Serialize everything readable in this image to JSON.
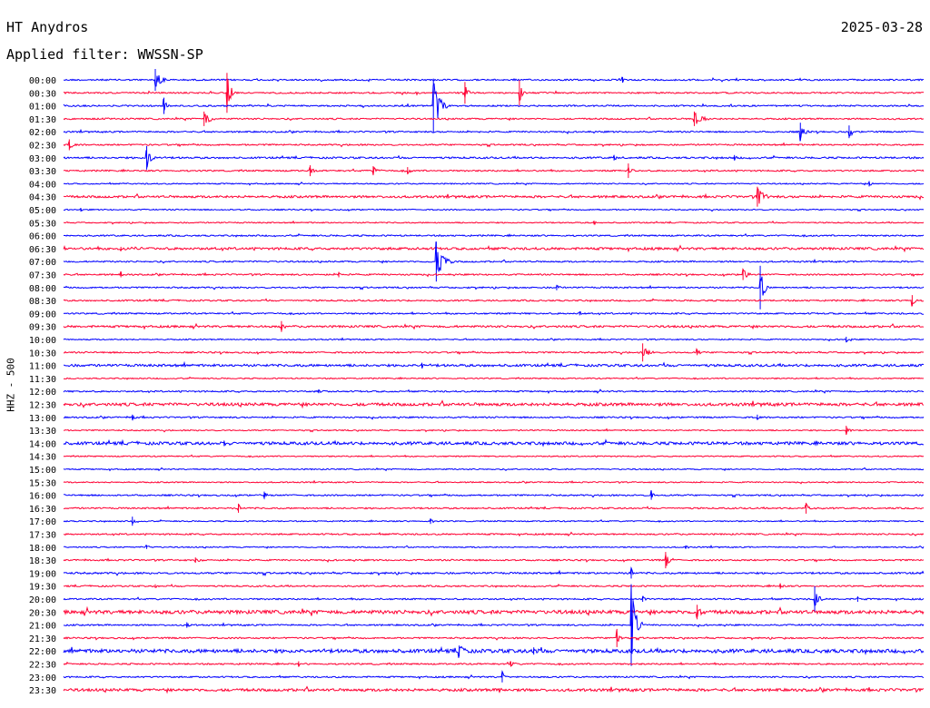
{
  "header": {
    "station": "HT Anydros",
    "date": "2025-03-28",
    "filter": "Applied filter: WWSSN-SP",
    "channel": "HHZ - 500"
  },
  "colors": {
    "trace_a": "#0000ff",
    "trace_b": "#ff0033"
  },
  "chart_data": {
    "type": "line",
    "x_range": [
      0,
      30
    ],
    "x_unit": "minutes",
    "rows": [
      {
        "time": "00:00",
        "noise": 1,
        "events": [
          {
            "x": 3.2,
            "amp": 12,
            "dur": 0.4
          },
          {
            "x": 19.5,
            "amp": 3,
            "dur": 0.2
          }
        ]
      },
      {
        "time": "00:30",
        "noise": 1,
        "events": [
          {
            "x": 5.7,
            "amp": 22,
            "dur": 0.3
          },
          {
            "x": 14.0,
            "amp": 12,
            "dur": 0.2
          },
          {
            "x": 15.9,
            "amp": 14,
            "dur": 0.2
          }
        ]
      },
      {
        "time": "01:00",
        "noise": 1,
        "events": [
          {
            "x": 3.5,
            "amp": 9,
            "dur": 0.2
          },
          {
            "x": 12.9,
            "amp": 30,
            "dur": 0.5
          }
        ]
      },
      {
        "time": "01:30",
        "noise": 1,
        "events": [
          {
            "x": 4.9,
            "amp": 8,
            "dur": 0.5
          },
          {
            "x": 22.0,
            "amp": 8,
            "dur": 0.6
          }
        ]
      },
      {
        "time": "02:00",
        "noise": 1,
        "events": [
          {
            "x": 25.7,
            "amp": 10,
            "dur": 0.3
          },
          {
            "x": 27.4,
            "amp": 7,
            "dur": 0.2
          }
        ]
      },
      {
        "time": "02:30",
        "noise": 1,
        "events": [
          {
            "x": 0.2,
            "amp": 6,
            "dur": 0.3
          }
        ]
      },
      {
        "time": "03:00",
        "noise": 1.2,
        "events": [
          {
            "x": 2.9,
            "amp": 13,
            "dur": 0.3
          },
          {
            "x": 19.2,
            "amp": 3,
            "dur": 0.2
          },
          {
            "x": 23.4,
            "amp": 3,
            "dur": 0.2
          }
        ]
      },
      {
        "time": "03:30",
        "noise": 1,
        "events": [
          {
            "x": 8.6,
            "amp": 6,
            "dur": 0.2
          },
          {
            "x": 10.8,
            "amp": 5,
            "dur": 0.3
          },
          {
            "x": 12.0,
            "amp": 4,
            "dur": 0.2
          },
          {
            "x": 19.7,
            "amp": 8,
            "dur": 0.2
          }
        ]
      },
      {
        "time": "04:00",
        "noise": 0.8,
        "events": [
          {
            "x": 28.1,
            "amp": 3,
            "dur": 0.2
          }
        ]
      },
      {
        "time": "04:30",
        "noise": 1.5,
        "events": [
          {
            "x": 24.2,
            "amp": 11,
            "dur": 0.5
          }
        ]
      },
      {
        "time": "05:00",
        "noise": 0.8,
        "events": [
          {
            "x": 0.6,
            "amp": 2,
            "dur": 0.2
          }
        ]
      },
      {
        "time": "05:30",
        "noise": 0.8,
        "events": [
          {
            "x": 18.5,
            "amp": 2,
            "dur": 0.2
          }
        ]
      },
      {
        "time": "06:00",
        "noise": 1,
        "events": []
      },
      {
        "time": "06:30",
        "noise": 1.6,
        "events": [
          {
            "x": 2.0,
            "amp": 2,
            "dur": 1.2
          }
        ]
      },
      {
        "time": "07:00",
        "noise": 1,
        "events": [
          {
            "x": 13.0,
            "amp": 22,
            "dur": 0.6
          }
        ]
      },
      {
        "time": "07:30",
        "noise": 1,
        "events": [
          {
            "x": 2.0,
            "amp": 3,
            "dur": 0.2
          },
          {
            "x": 9.6,
            "amp": 3,
            "dur": 0.2
          },
          {
            "x": 23.7,
            "amp": 6,
            "dur": 0.4
          }
        ]
      },
      {
        "time": "08:00",
        "noise": 1,
        "events": [
          {
            "x": 17.2,
            "amp": 3,
            "dur": 0.2
          },
          {
            "x": 24.3,
            "amp": 24,
            "dur": 0.3
          }
        ]
      },
      {
        "time": "08:30",
        "noise": 1,
        "events": [
          {
            "x": 29.6,
            "amp": 6,
            "dur": 0.2
          }
        ]
      },
      {
        "time": "09:00",
        "noise": 1,
        "events": [
          {
            "x": 18.0,
            "amp": 2,
            "dur": 0.2
          }
        ]
      },
      {
        "time": "09:30",
        "noise": 1.4,
        "events": [
          {
            "x": 7.6,
            "amp": 6,
            "dur": 0.2
          }
        ]
      },
      {
        "time": "10:00",
        "noise": 0.8,
        "events": [
          {
            "x": 27.3,
            "amp": 3,
            "dur": 0.2
          }
        ]
      },
      {
        "time": "10:30",
        "noise": 1,
        "events": [
          {
            "x": 20.2,
            "amp": 10,
            "dur": 0.4
          },
          {
            "x": 22.1,
            "amp": 3,
            "dur": 0.2
          }
        ]
      },
      {
        "time": "11:00",
        "noise": 1.6,
        "events": [
          {
            "x": 12.5,
            "amp": 3,
            "dur": 0.2
          }
        ]
      },
      {
        "time": "11:30",
        "noise": 0.8,
        "events": []
      },
      {
        "time": "12:00",
        "noise": 1,
        "events": [
          {
            "x": 8.9,
            "amp": 2,
            "dur": 0.2
          }
        ]
      },
      {
        "time": "12:30",
        "noise": 2,
        "events": []
      },
      {
        "time": "13:00",
        "noise": 1,
        "events": [
          {
            "x": 2.4,
            "amp": 3,
            "dur": 0.2
          },
          {
            "x": 24.2,
            "amp": 3,
            "dur": 0.2
          }
        ]
      },
      {
        "time": "13:30",
        "noise": 0.8,
        "events": [
          {
            "x": 27.3,
            "amp": 5,
            "dur": 0.2
          }
        ]
      },
      {
        "time": "14:00",
        "noise": 2,
        "events": [
          {
            "x": 5.6,
            "amp": 3,
            "dur": 0.2
          }
        ]
      },
      {
        "time": "14:30",
        "noise": 0.8,
        "events": []
      },
      {
        "time": "15:00",
        "noise": 0.8,
        "events": []
      },
      {
        "time": "15:30",
        "noise": 0.8,
        "events": []
      },
      {
        "time": "16:00",
        "noise": 1,
        "events": [
          {
            "x": 7.0,
            "amp": 4,
            "dur": 0.2
          },
          {
            "x": 20.5,
            "amp": 5,
            "dur": 0.2
          }
        ]
      },
      {
        "time": "16:30",
        "noise": 1,
        "events": [
          {
            "x": 6.1,
            "amp": 5,
            "dur": 0.2
          },
          {
            "x": 25.9,
            "amp": 6,
            "dur": 0.2
          }
        ]
      },
      {
        "time": "17:00",
        "noise": 0.8,
        "events": [
          {
            "x": 2.4,
            "amp": 5,
            "dur": 0.2
          },
          {
            "x": 12.8,
            "amp": 3,
            "dur": 0.2
          }
        ]
      },
      {
        "time": "17:30",
        "noise": 1,
        "events": []
      },
      {
        "time": "18:00",
        "noise": 0.8,
        "events": [
          {
            "x": 2.9,
            "amp": 2,
            "dur": 0.2
          },
          {
            "x": 21.7,
            "amp": 2,
            "dur": 0.2
          }
        ]
      },
      {
        "time": "18:30",
        "noise": 1,
        "events": [
          {
            "x": 4.6,
            "amp": 3,
            "dur": 0.3
          },
          {
            "x": 21.0,
            "amp": 9,
            "dur": 0.3
          }
        ]
      },
      {
        "time": "19:00",
        "noise": 1.2,
        "events": [
          {
            "x": 19.8,
            "amp": 6,
            "dur": 0.2
          }
        ]
      },
      {
        "time": "19:30",
        "noise": 1,
        "events": [
          {
            "x": 3.2,
            "amp": 2,
            "dur": 0.2
          },
          {
            "x": 25.0,
            "amp": 3,
            "dur": 0.2
          }
        ]
      },
      {
        "time": "20:00",
        "noise": 1,
        "events": [
          {
            "x": 20.2,
            "amp": 3,
            "dur": 0.2
          },
          {
            "x": 26.2,
            "amp": 14,
            "dur": 0.3
          },
          {
            "x": 27.7,
            "amp": 3,
            "dur": 0.2
          }
        ]
      },
      {
        "time": "20:30",
        "noise": 2.4,
        "events": [
          {
            "x": 22.1,
            "amp": 8,
            "dur": 0.3
          }
        ]
      },
      {
        "time": "21:00",
        "noise": 1,
        "events": [
          {
            "x": 4.3,
            "amp": 3,
            "dur": 0.2
          },
          {
            "x": 19.8,
            "amp": 45,
            "dur": 0.4
          }
        ]
      },
      {
        "time": "21:30",
        "noise": 1,
        "events": [
          {
            "x": 19.3,
            "amp": 10,
            "dur": 0.2
          }
        ]
      },
      {
        "time": "22:00",
        "noise": 2.4,
        "events": [
          {
            "x": 13.8,
            "amp": 6,
            "dur": 0.3
          },
          {
            "x": 16.4,
            "amp": 4,
            "dur": 0.2
          }
        ]
      },
      {
        "time": "22:30",
        "noise": 1,
        "events": [
          {
            "x": 8.2,
            "amp": 3,
            "dur": 0.2
          },
          {
            "x": 15.6,
            "amp": 3,
            "dur": 0.2
          }
        ]
      },
      {
        "time": "23:00",
        "noise": 1,
        "events": [
          {
            "x": 15.3,
            "amp": 6,
            "dur": 0.2
          }
        ]
      },
      {
        "time": "23:30",
        "noise": 1.8,
        "events": [
          {
            "x": 15.2,
            "amp": 2,
            "dur": 0.2
          }
        ]
      }
    ]
  }
}
